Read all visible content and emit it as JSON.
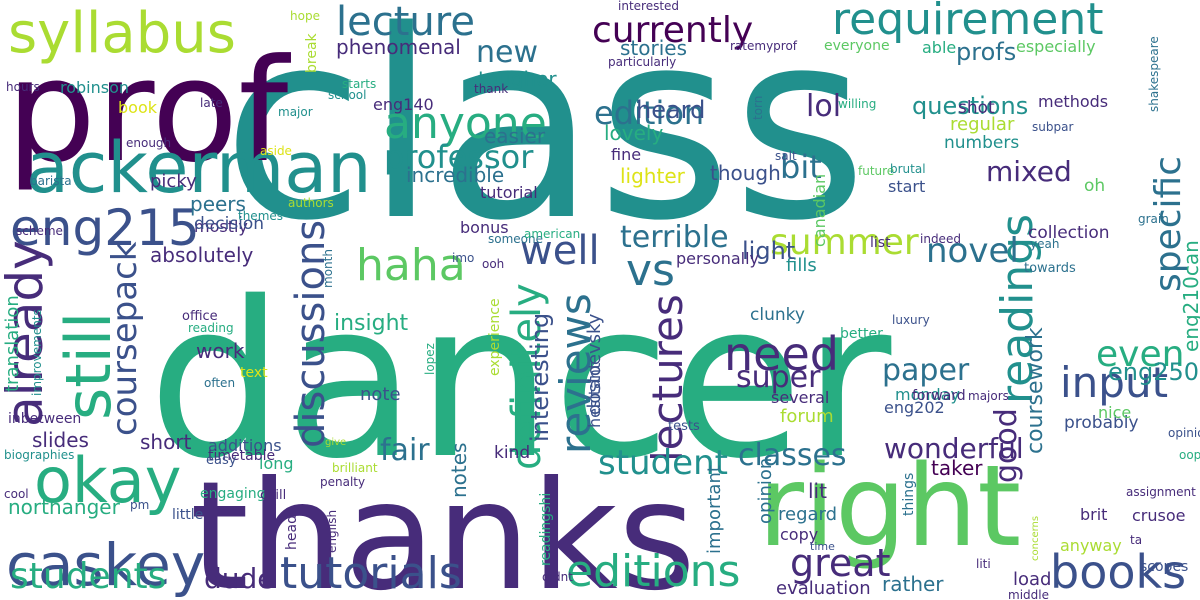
{
  "palette": {
    "p1": "#440154",
    "p2": "#472c7a",
    "p3": "#3b518b",
    "p4": "#2c718e",
    "p5": "#21908d",
    "p6": "#27ad81",
    "p7": "#5cc863",
    "p8": "#aadc32",
    "p9": "#dde318"
  },
  "words": [
    {
      "text": "class",
      "color": "p5"
    },
    {
      "text": "dancer",
      "color": "p6"
    },
    {
      "text": "prof",
      "color": "p1"
    },
    {
      "text": "thanks",
      "color": "p2"
    },
    {
      "text": "right",
      "color": "p7"
    },
    {
      "text": "ackerman",
      "color": "p5"
    },
    {
      "text": "syllabus",
      "color": "p8"
    },
    {
      "text": "okay",
      "color": "p6"
    },
    {
      "text": "caskey",
      "color": "p3"
    },
    {
      "text": "eng215",
      "color": "p3"
    },
    {
      "text": "still",
      "color": "p6"
    },
    {
      "text": "already",
      "color": "p2"
    },
    {
      "text": "students",
      "color": "p6"
    },
    {
      "text": "tutorials",
      "color": "p3"
    },
    {
      "text": "editions",
      "color": "p6"
    },
    {
      "text": "books",
      "color": "p3"
    },
    {
      "text": "input",
      "color": "p3"
    },
    {
      "text": "requirement",
      "color": "p5"
    },
    {
      "text": "currently",
      "color": "p1"
    },
    {
      "text": "lecture",
      "color": "p4"
    },
    {
      "text": "anyone",
      "color": "p6"
    },
    {
      "text": "haha",
      "color": "p7"
    },
    {
      "text": "well",
      "color": "p3"
    },
    {
      "text": "vs",
      "color": "p4"
    },
    {
      "text": "need",
      "color": "p2"
    },
    {
      "text": "readings",
      "color": "p5"
    },
    {
      "text": "specific",
      "color": "p4"
    },
    {
      "text": "discussions",
      "color": "p3"
    },
    {
      "text": "coursepack",
      "color": "p3"
    },
    {
      "text": "definitely",
      "color": "p6"
    },
    {
      "text": "reviews",
      "color": "p4"
    },
    {
      "text": "lectures",
      "color": "p2"
    },
    {
      "text": "professor",
      "color": "p5"
    },
    {
      "text": "summer",
      "color": "p8"
    },
    {
      "text": "edition",
      "color": "p4"
    },
    {
      "text": "great",
      "color": "p2"
    },
    {
      "text": "student",
      "color": "p5"
    },
    {
      "text": "even",
      "color": "p6"
    },
    {
      "text": "eng250",
      "color": "p5"
    },
    {
      "text": "good",
      "color": "p2"
    },
    {
      "text": "novel",
      "color": "p4"
    },
    {
      "text": "super",
      "color": "p2"
    },
    {
      "text": "paper",
      "color": "p4"
    },
    {
      "text": "classes",
      "color": "p4"
    },
    {
      "text": "wonderful",
      "color": "p2"
    },
    {
      "text": "dude",
      "color": "p2"
    },
    {
      "text": "fair",
      "color": "p4"
    },
    {
      "text": "new",
      "color": "p4"
    },
    {
      "text": "lol",
      "color": "p2"
    },
    {
      "text": "bit",
      "color": "p4"
    },
    {
      "text": "mixed",
      "color": "p2"
    },
    {
      "text": "questions",
      "color": "p5"
    },
    {
      "text": "terrible",
      "color": "p4"
    },
    {
      "text": "coursework",
      "color": "p4"
    },
    {
      "text": "interesting",
      "color": "p3"
    },
    {
      "text": "notes",
      "color": "p4"
    },
    {
      "text": "eng210can",
      "color": "p6"
    },
    {
      "text": "phenomenal",
      "color": "p2"
    },
    {
      "text": "tougher",
      "color": "p5"
    },
    {
      "text": "easier",
      "color": "p4"
    },
    {
      "text": "incredible",
      "color": "p4"
    },
    {
      "text": "stories",
      "color": "p4"
    },
    {
      "text": "heard",
      "color": "p3"
    },
    {
      "text": "lovely",
      "color": "p6"
    },
    {
      "text": "fine",
      "color": "p2"
    },
    {
      "text": "lighter",
      "color": "p9"
    },
    {
      "text": "though",
      "color": "p3"
    },
    {
      "text": "tutorial",
      "color": "p2"
    },
    {
      "text": "profs",
      "color": "p4"
    },
    {
      "text": "especially",
      "color": "p7"
    },
    {
      "text": "shot",
      "color": "p2"
    },
    {
      "text": "methods",
      "color": "p2"
    },
    {
      "text": "regular",
      "color": "p8"
    },
    {
      "text": "numbers",
      "color": "p5"
    },
    {
      "text": "start",
      "color": "p3"
    },
    {
      "text": "oh",
      "color": "p7"
    },
    {
      "text": "canadian",
      "color": "p7"
    },
    {
      "text": "collection",
      "color": "p2"
    },
    {
      "text": "insight",
      "color": "p6"
    },
    {
      "text": "work",
      "color": "p2"
    },
    {
      "text": "note",
      "color": "p3"
    },
    {
      "text": "absolutely",
      "color": "p2"
    },
    {
      "text": "peers",
      "color": "p4"
    },
    {
      "text": "mostly",
      "color": "p2"
    },
    {
      "text": "decision",
      "color": "p3"
    },
    {
      "text": "robinson",
      "color": "p5"
    },
    {
      "text": "picky",
      "color": "p2"
    },
    {
      "text": "slides",
      "color": "p2"
    },
    {
      "text": "short",
      "color": "p2"
    },
    {
      "text": "additions",
      "color": "p3"
    },
    {
      "text": "long",
      "color": "p6"
    },
    {
      "text": "kind",
      "color": "p2"
    },
    {
      "text": "fills",
      "color": "p5"
    },
    {
      "text": "light",
      "color": "p3"
    },
    {
      "text": "personally",
      "color": "p2"
    },
    {
      "text": "clunky",
      "color": "p4"
    },
    {
      "text": "monday",
      "color": "p5"
    },
    {
      "text": "several",
      "color": "p2"
    },
    {
      "text": "forum",
      "color": "p8"
    },
    {
      "text": "probably",
      "color": "p3"
    },
    {
      "text": "nice",
      "color": "p7"
    },
    {
      "text": "taker",
      "color": "p1"
    },
    {
      "text": "crusoe",
      "color": "p2"
    },
    {
      "text": "lit",
      "color": "p2"
    },
    {
      "text": "regard",
      "color": "p4"
    },
    {
      "text": "copy",
      "color": "p2"
    },
    {
      "text": "opinion",
      "color": "p4"
    },
    {
      "text": "important",
      "color": "p4"
    },
    {
      "text": "evaluation",
      "color": "p2"
    },
    {
      "text": "rather",
      "color": "p4"
    },
    {
      "text": "load",
      "color": "p2"
    },
    {
      "text": "anyway",
      "color": "p8"
    },
    {
      "text": "northanger",
      "color": "p6"
    },
    {
      "text": "dostoevsky",
      "color": "p3"
    },
    {
      "text": "book",
      "color": "p9"
    },
    {
      "text": "eng140",
      "color": "p2"
    },
    {
      "text": "translation",
      "color": "p6"
    },
    {
      "text": "office",
      "color": "p2"
    },
    {
      "text": "reading",
      "color": "p6"
    },
    {
      "text": "often",
      "color": "p4"
    },
    {
      "text": "text",
      "color": "p9"
    },
    {
      "text": "improvements",
      "color": "p5"
    },
    {
      "text": "inbetween",
      "color": "p2"
    },
    {
      "text": "biographies",
      "color": "p5"
    },
    {
      "text": "timetable",
      "color": "p2"
    },
    {
      "text": "cool",
      "color": "p2"
    },
    {
      "text": "engaging",
      "color": "p6"
    },
    {
      "text": "chill",
      "color": "p2"
    },
    {
      "text": "easy",
      "color": "p3"
    },
    {
      "text": "little",
      "color": "p3"
    },
    {
      "text": "pm",
      "color": "p3"
    },
    {
      "text": "head",
      "color": "p2"
    },
    {
      "text": "english",
      "color": "p2"
    },
    {
      "text": "penalty",
      "color": "p2"
    },
    {
      "text": "brilliant",
      "color": "p8"
    },
    {
      "text": "give",
      "color": "p8"
    },
    {
      "text": "readingshi",
      "color": "p6"
    },
    {
      "text": "didnt",
      "color": "p2"
    },
    {
      "text": "things",
      "color": "p4"
    },
    {
      "text": "time",
      "color": "p3"
    },
    {
      "text": "middle",
      "color": "p2"
    },
    {
      "text": "liti",
      "color": "p2"
    },
    {
      "text": "ta",
      "color": "p2"
    },
    {
      "text": "scopes",
      "color": "p3"
    },
    {
      "text": "brit",
      "color": "p2"
    },
    {
      "text": "concerns",
      "color": "p8"
    },
    {
      "text": "assignment",
      "color": "p2"
    },
    {
      "text": "opinions",
      "color": "p3"
    },
    {
      "text": "oops",
      "color": "p6"
    },
    {
      "text": "eng202",
      "color": "p3"
    },
    {
      "text": "tests",
      "color": "p3"
    },
    {
      "text": "hesitant",
      "color": "p3"
    },
    {
      "text": "experience",
      "color": "p8"
    },
    {
      "text": "lopez",
      "color": "p6"
    },
    {
      "text": "luxury",
      "color": "p3"
    },
    {
      "text": "better",
      "color": "p6"
    },
    {
      "text": "forward",
      "color": "p2"
    },
    {
      "text": "majors",
      "color": "p2"
    },
    {
      "text": "list",
      "color": "p2"
    },
    {
      "text": "towards",
      "color": "p4"
    },
    {
      "text": "yeah",
      "color": "p4"
    },
    {
      "text": "grain",
      "color": "p4"
    },
    {
      "text": "indeed",
      "color": "p2"
    },
    {
      "text": "someone",
      "color": "p4"
    },
    {
      "text": "imo",
      "color": "p3"
    },
    {
      "text": "ooh",
      "color": "p2"
    },
    {
      "text": "bonus",
      "color": "p2"
    },
    {
      "text": "american",
      "color": "p6"
    },
    {
      "text": "month",
      "color": "p4"
    },
    {
      "text": "themes",
      "color": "p5"
    },
    {
      "text": "authors",
      "color": "p8"
    },
    {
      "text": "scheme",
      "color": "p2"
    },
    {
      "text": "barista",
      "color": "p4"
    },
    {
      "text": "aside",
      "color": "p9"
    },
    {
      "text": "major",
      "color": "p5"
    },
    {
      "text": "enough",
      "color": "p2"
    },
    {
      "text": "late",
      "color": "p2"
    },
    {
      "text": "school",
      "color": "p5"
    },
    {
      "text": "break",
      "color": "p8"
    },
    {
      "text": "hours",
      "color": "p2"
    },
    {
      "text": "starts",
      "color": "p6"
    },
    {
      "text": "hope",
      "color": "p8"
    },
    {
      "text": "thank",
      "color": "p2"
    },
    {
      "text": "interested",
      "color": "p2"
    },
    {
      "text": "particularly",
      "color": "p2"
    },
    {
      "text": "ratemyprof",
      "color": "p2"
    },
    {
      "text": "everyone",
      "color": "p7"
    },
    {
      "text": "able",
      "color": "p6"
    },
    {
      "text": "torn",
      "color": "p4"
    },
    {
      "text": "willing",
      "color": "p6"
    },
    {
      "text": "subpar",
      "color": "p3"
    },
    {
      "text": "shakespeare",
      "color": "p4"
    },
    {
      "text": "salt",
      "color": "p3"
    },
    {
      "text": "future",
      "color": "p7"
    },
    {
      "text": "brutal",
      "color": "p5"
    }
  ]
}
